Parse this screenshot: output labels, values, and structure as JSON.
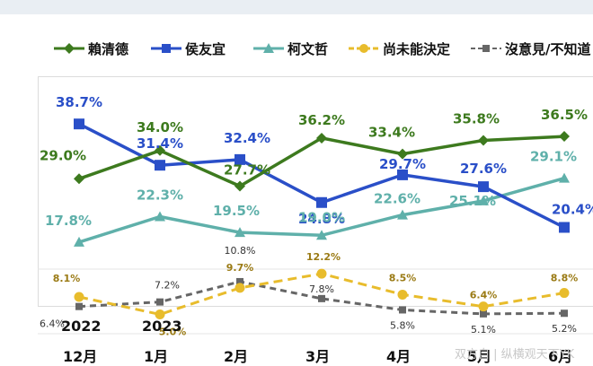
{
  "chart_data": {
    "type": "line",
    "categories": [
      "12月",
      "1月",
      "2月",
      "3月",
      "4月",
      "5月",
      "6月"
    ],
    "year_labels": [
      "2022",
      "2023",
      "",
      "",
      "",
      "",
      ""
    ],
    "ylim": [
      0,
      45
    ],
    "grid": true,
    "legend_position": "top",
    "series": [
      {
        "name": "賴清德",
        "color": "#3d7a1e",
        "marker": "diamond",
        "dashed": false,
        "values": [
          29.0,
          34.0,
          27.7,
          36.2,
          33.4,
          35.8,
          36.5
        ],
        "labels": [
          "29.0%",
          "34.0%",
          "27.7%",
          "36.2%",
          "33.4%",
          "35.8%",
          "36.5%"
        ]
      },
      {
        "name": "侯友宜",
        "color": "#2a4fc8",
        "marker": "square",
        "dashed": false,
        "values": [
          38.7,
          31.4,
          32.4,
          24.8,
          29.7,
          27.6,
          20.4
        ],
        "labels": [
          "38.7%",
          "31.4%",
          "32.4%",
          "24.8%",
          "29.7%",
          "27.6%",
          "20.4%"
        ]
      },
      {
        "name": "柯文哲",
        "color": "#5fb0aa",
        "marker": "triangle",
        "dashed": false,
        "values": [
          17.8,
          22.3,
          19.5,
          19.0,
          22.6,
          25.1,
          29.1
        ],
        "labels": [
          "17.8%",
          "22.3%",
          "19.5%",
          "19.0%",
          "22.6%",
          "25.1%",
          "29.1%"
        ]
      },
      {
        "name": "尚未能決定",
        "color": "#e8bc2c",
        "marker": "circle",
        "dashed": true,
        "values": [
          8.1,
          5.0,
          9.7,
          12.2,
          8.5,
          6.4,
          8.8
        ],
        "labels": [
          "8.1%",
          "5.0%",
          "9.7%",
          "12.2%",
          "8.5%",
          "6.4%",
          "8.8%"
        ]
      },
      {
        "name": "沒意見/不知道",
        "color": "#666666",
        "marker": "square",
        "dashed": true,
        "values": [
          6.4,
          7.2,
          10.8,
          7.8,
          5.8,
          5.1,
          5.2
        ],
        "labels": [
          "6.4%",
          "7.2%",
          "10.8%",
          "7.8%",
          "5.8%",
          "5.1%",
          "5.2%"
        ]
      }
    ]
  },
  "watermark": "双方自 | 纵横观天下YK"
}
